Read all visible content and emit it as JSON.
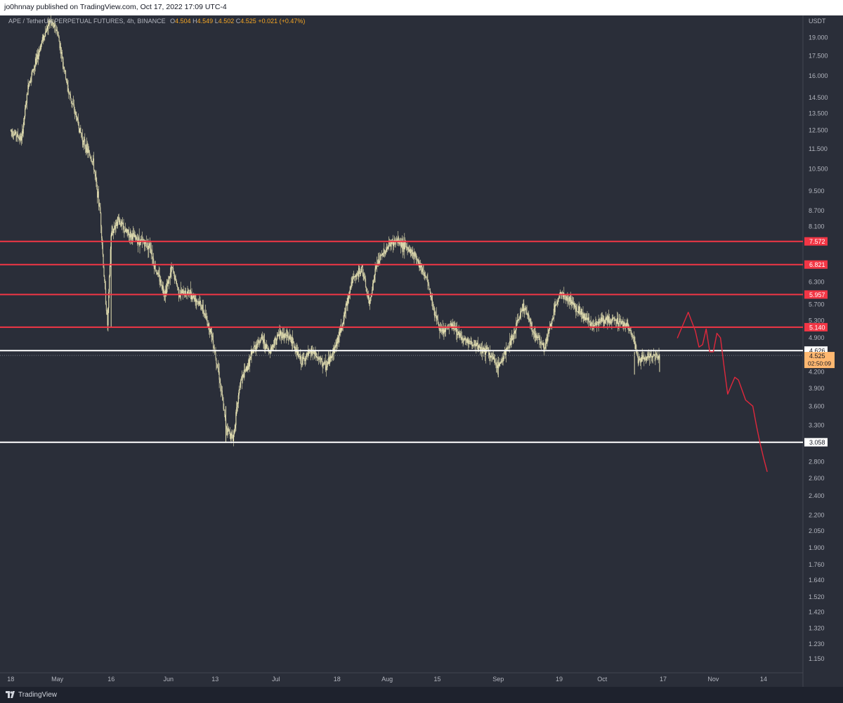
{
  "header": {
    "publisher": "jo0hnnay published on TradingView.com, Oct 17, 2022 17:09 UTC-4"
  },
  "legend": {
    "symbol": "APE / TetherUS PERPETUAL FUTURES, 4h, BINANCE",
    "o_label": "O",
    "o": "4.504",
    "h_label": "H",
    "h": "4.549",
    "l_label": "L",
    "l": "4.502",
    "c_label": "C",
    "c": "4.525",
    "change": "+0.021 (+0.47%)"
  },
  "footer": {
    "brand": "TradingView"
  },
  "colors": {
    "background": "#2a2e39",
    "candles": "#e8e4b4",
    "resistance": "#f23645",
    "support": "#ffffff",
    "price_label": "#ffb871",
    "drawing": "#e0283c"
  },
  "chart_data": {
    "type": "candlestick",
    "scale": "log",
    "ylabel": "USDT",
    "ylim": [
      1.08,
      21.0
    ],
    "y_ticks": [
      "19.000",
      "17.500",
      "16.000",
      "14.500",
      "13.500",
      "12.500",
      "11.500",
      "10.500",
      "9.500",
      "8.700",
      "8.100",
      "6.300",
      "5.700",
      "5.300",
      "4.900",
      "4.200",
      "3.900",
      "3.600",
      "3.300",
      "2.800",
      "2.600",
      "2.400",
      "2.200",
      "2.050",
      "1.900",
      "1.760",
      "1.640",
      "1.520",
      "1.420",
      "1.320",
      "1.230",
      "1.150"
    ],
    "x_ticks": [
      "18",
      "May",
      "16",
      "Jun",
      "13",
      "Jul",
      "18",
      "Aug",
      "15",
      "Sep",
      "19",
      "Oct",
      "17",
      "Nov",
      "14"
    ],
    "x_ticks_day": [
      0,
      13,
      28,
      44,
      57,
      74,
      91,
      105,
      119,
      136,
      153,
      165,
      182,
      196,
      210
    ],
    "x_range": [
      -3,
      221
    ],
    "horizontal_levels": [
      {
        "value": 7.572,
        "label": "7.572",
        "kind": "resistance"
      },
      {
        "value": 6.821,
        "label": "6.821",
        "kind": "resistance"
      },
      {
        "value": 5.957,
        "label": "5.957",
        "kind": "resistance"
      },
      {
        "value": 5.14,
        "label": "5.140",
        "kind": "resistance"
      },
      {
        "value": 4.626,
        "label": "4.626",
        "kind": "support"
      },
      {
        "value": 3.058,
        "label": "3.058",
        "kind": "support"
      }
    ],
    "last_price": {
      "value": 4.525,
      "label": "4.525",
      "countdown": "02:50:09"
    },
    "price_path": {
      "days": [
        0,
        3,
        5,
        7,
        9,
        11,
        13,
        16,
        18,
        20,
        23,
        25,
        26,
        27,
        28,
        30,
        32,
        36,
        39,
        40,
        43,
        45,
        47,
        50,
        53,
        56,
        58,
        60,
        62,
        64,
        66,
        68,
        70,
        72,
        75,
        78,
        81,
        84,
        88,
        91,
        93,
        95,
        98,
        100,
        102,
        104,
        106,
        108,
        110,
        113,
        116,
        118,
        120,
        123,
        126,
        130,
        133,
        136,
        140,
        143,
        146,
        149,
        153,
        156,
        159,
        162,
        165,
        169,
        172,
        174,
        175,
        177,
        179,
        181
      ],
      "values": [
        12.5,
        12.0,
        15.5,
        17.0,
        19.0,
        20.5,
        19.5,
        15.0,
        13.5,
        12.0,
        10.8,
        8.6,
        6.5,
        5.2,
        7.8,
        8.4,
        7.9,
        7.6,
        7.4,
        6.8,
        6.0,
        6.7,
        6.0,
        6.0,
        5.7,
        5.0,
        4.2,
        3.3,
        3.1,
        4.0,
        4.3,
        4.7,
        4.9,
        4.6,
        5.0,
        4.9,
        4.4,
        4.6,
        4.3,
        4.8,
        5.4,
        6.3,
        6.7,
        5.7,
        6.8,
        7.2,
        7.5,
        7.6,
        7.4,
        7.1,
        6.4,
        5.6,
        5.0,
        5.2,
        4.9,
        4.7,
        4.6,
        4.3,
        4.9,
        5.7,
        5.0,
        4.7,
        6.0,
        5.8,
        5.5,
        5.2,
        5.3,
        5.3,
        5.2,
        4.8,
        4.4,
        4.5,
        4.5,
        4.525
      ]
    },
    "projection": {
      "days": [
        186,
        189,
        191,
        192,
        193,
        194,
        195,
        196,
        197,
        198,
        199,
        200,
        201,
        202,
        203,
        205,
        207,
        208,
        209,
        210,
        211
      ],
      "values": [
        4.9,
        5.5,
        5.05,
        4.7,
        4.75,
        5.1,
        4.6,
        4.6,
        5.0,
        4.9,
        4.3,
        3.8,
        3.95,
        4.1,
        4.05,
        3.7,
        3.6,
        3.3,
        3.05,
        2.85,
        2.68
      ]
    }
  }
}
